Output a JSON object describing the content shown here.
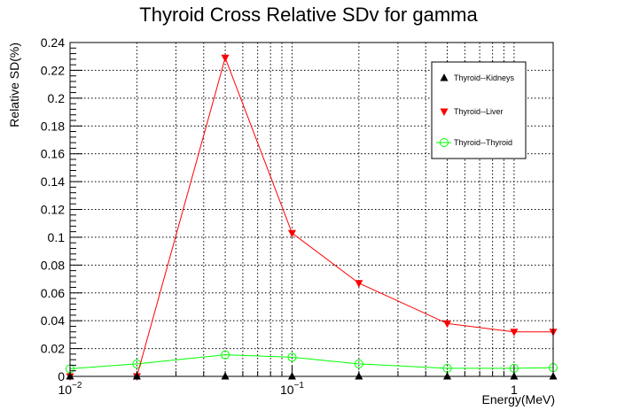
{
  "chart_data": {
    "type": "line",
    "title": "Thyroid Cross Relative SDv for gamma",
    "xlabel": "Energy(MeV)",
    "ylabel": "Relative SD(%)",
    "x_scale": "log",
    "xlim": [
      0.01,
      1.5
    ],
    "ylim": [
      0,
      0.24
    ],
    "grid": true,
    "legend_position": "top-right",
    "x_major_ticks": [
      {
        "value": 0.01,
        "base": "10",
        "exp": "−2"
      },
      {
        "value": 0.1,
        "base": "10",
        "exp": "−1"
      },
      {
        "value": 1,
        "base": "1",
        "exp": ""
      }
    ],
    "y_ticks": [
      {
        "value": 0,
        "label": "0"
      },
      {
        "value": 0.02,
        "label": "0.02"
      },
      {
        "value": 0.04,
        "label": "0.04"
      },
      {
        "value": 0.06,
        "label": "0.06"
      },
      {
        "value": 0.08,
        "label": "0.08"
      },
      {
        "value": 0.1,
        "label": "0.1"
      },
      {
        "value": 0.12,
        "label": "0.12"
      },
      {
        "value": 0.14,
        "label": "0.14"
      },
      {
        "value": 0.16,
        "label": "0.16"
      },
      {
        "value": 0.18,
        "label": "0.18"
      },
      {
        "value": 0.2,
        "label": "0.2"
      },
      {
        "value": 0.22,
        "label": "0.22"
      },
      {
        "value": 0.24,
        "label": "0.24"
      }
    ],
    "x": [
      0.01,
      0.02,
      0.05,
      0.1,
      0.2,
      0.5,
      1,
      1.5
    ],
    "series": [
      {
        "name": "Thyroid--Kidneys",
        "color": "#000000",
        "marker": "triangle-up",
        "values": [
          0,
          0,
          0,
          0,
          0,
          0,
          0,
          0
        ]
      },
      {
        "name": "Thyroid--Liver",
        "color": "#ff0000",
        "marker": "triangle-down",
        "values": [
          0,
          0,
          0.229,
          0.103,
          0.067,
          0.038,
          0.032,
          0.032
        ]
      },
      {
        "name": "Thyroid--Thyroid",
        "color": "#00ff00",
        "marker": "circle-open",
        "values": [
          0.0055,
          0.009,
          0.0155,
          0.0138,
          0.009,
          0.0058,
          0.0058,
          0.0063
        ]
      }
    ]
  }
}
